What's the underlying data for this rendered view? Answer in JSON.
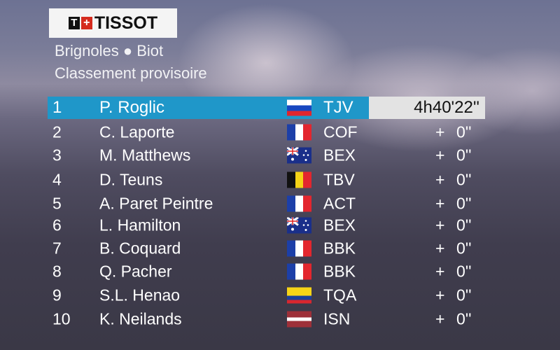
{
  "logo": {
    "text": "TISSOT"
  },
  "header": {
    "stage": "Brignoles ● Biot",
    "title": "Classement provisoire"
  },
  "leader_time": "4h40'22''",
  "colors": {
    "leader_bar": "#1f97c9",
    "time_box": "#e3e3e3"
  },
  "rows": [
    {
      "rank": "1",
      "name": "P. Roglic",
      "flag": "slovenia",
      "team": "TJV",
      "time": "4h40'22''"
    },
    {
      "rank": "2",
      "name": "C. Laporte",
      "flag": "france",
      "team": "COF",
      "plus": "+",
      "gap": "0''"
    },
    {
      "rank": "3",
      "name": "M. Matthews",
      "flag": "australia",
      "team": "BEX",
      "plus": "+",
      "gap": "0''"
    },
    {
      "rank": "4",
      "name": "D. Teuns",
      "flag": "belgium",
      "team": "TBV",
      "plus": "+",
      "gap": "0''"
    },
    {
      "rank": "5",
      "name": "A. Paret Peintre",
      "flag": "france",
      "team": "ACT",
      "plus": "+",
      "gap": "0''"
    },
    {
      "rank": "6",
      "name": "L. Hamilton",
      "flag": "australia",
      "team": "BEX",
      "plus": "+",
      "gap": "0''"
    },
    {
      "rank": "7",
      "name": "B. Coquard",
      "flag": "france",
      "team": "BBK",
      "plus": "+",
      "gap": "0''"
    },
    {
      "rank": "8",
      "name": "Q. Pacher",
      "flag": "france",
      "team": "BBK",
      "plus": "+",
      "gap": "0''"
    },
    {
      "rank": "9",
      "name": "S.L. Henao",
      "flag": "colombia",
      "team": "TQA",
      "plus": "+",
      "gap": "0''"
    },
    {
      "rank": "10",
      "name": "K. Neilands",
      "flag": "latvia",
      "team": "ISN",
      "plus": "+",
      "gap": "0''"
    }
  ]
}
